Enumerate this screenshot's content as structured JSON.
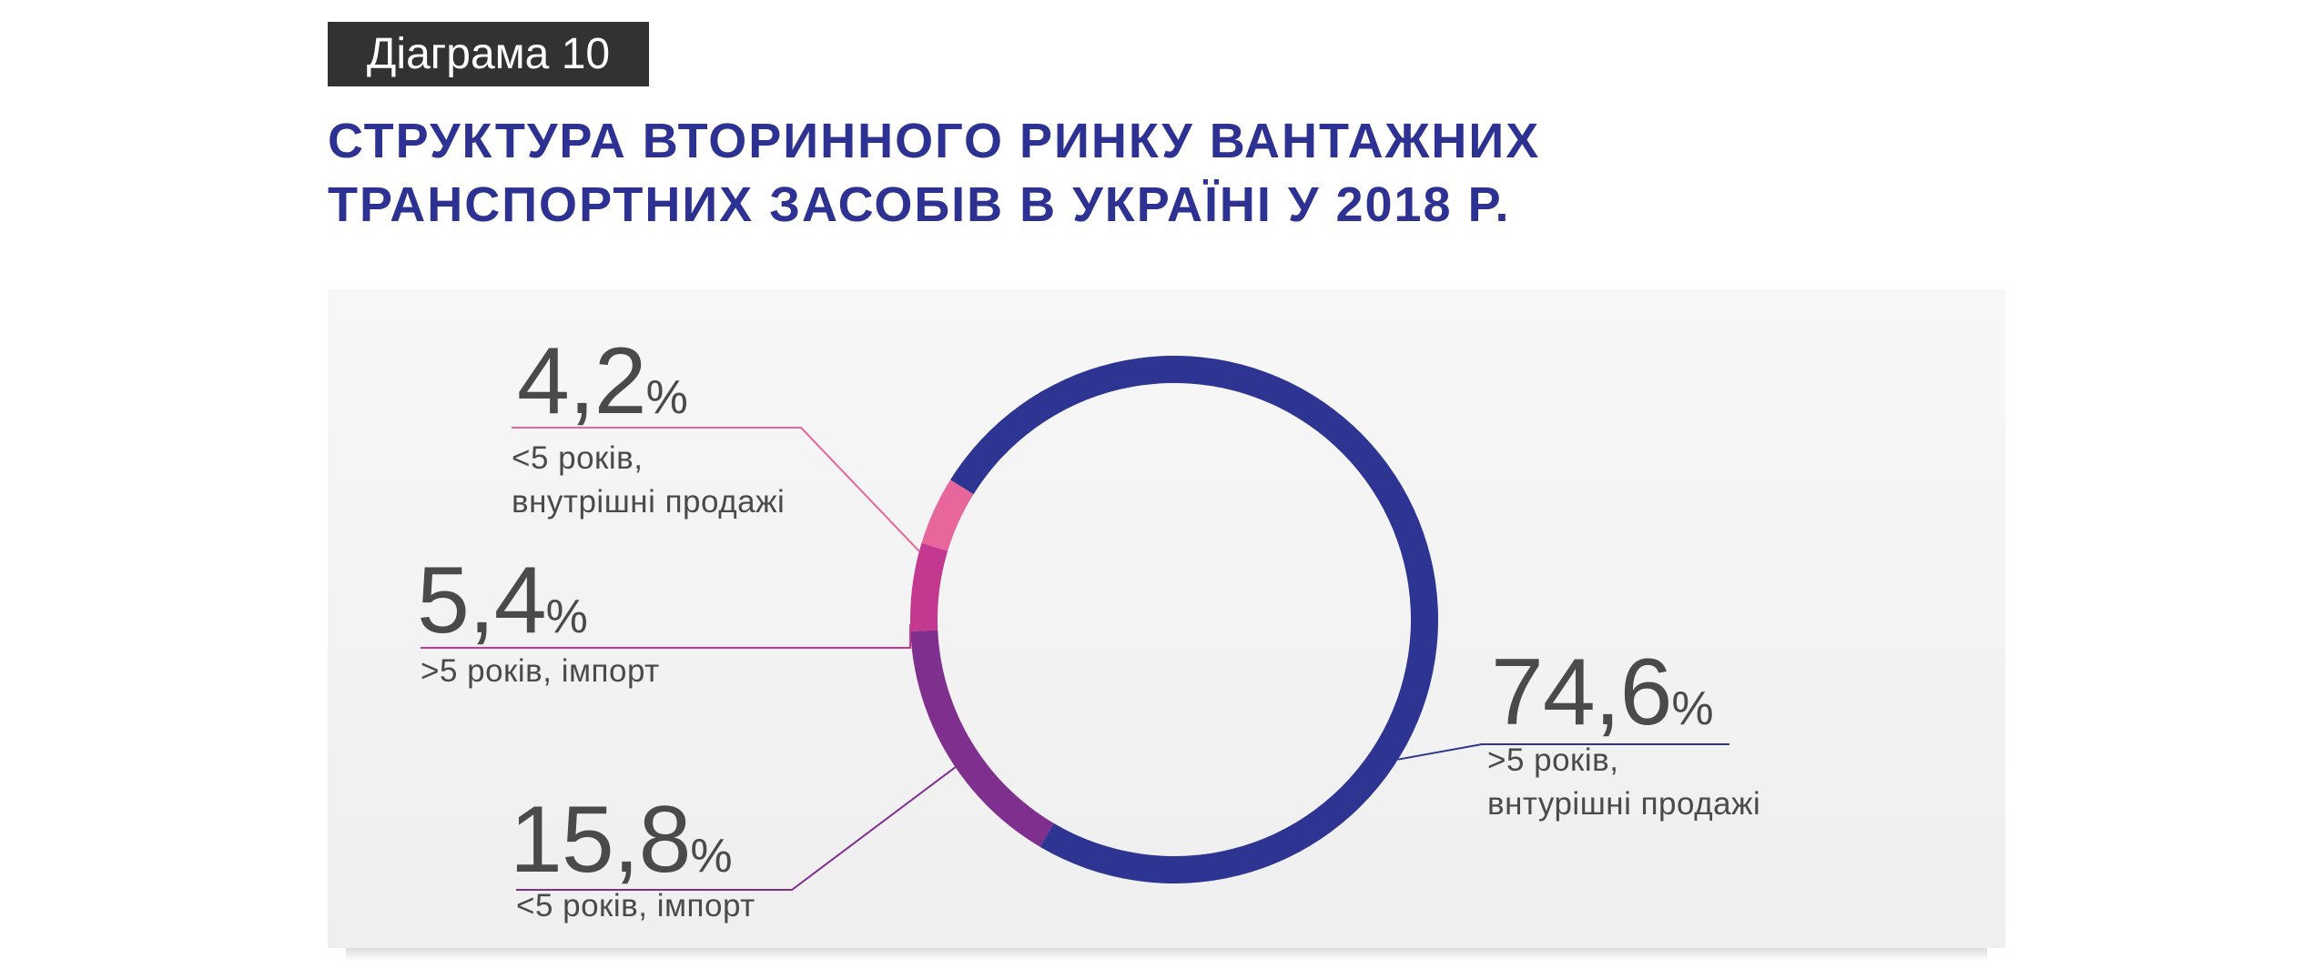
{
  "badge": "Діаграма 10",
  "title_lines": [
    "СТРУКТУРА ВТОРИННОГО РИНКУ ВАНТАЖНИХ",
    "ТРАНСПОРТНИХ ЗАСОБІВ В УКРАЇНІ У 2018 Р."
  ],
  "chart_data": {
    "type": "pie",
    "variant": "donut",
    "start_direction": "top-left",
    "segments": [
      {
        "label_line1": ">5 років,",
        "label_line2": "внтурішні продажі",
        "value": 74.6,
        "value_text": "74,6",
        "unit": "%",
        "color": "#2d3491"
      },
      {
        "label_line1": "<5 років, імпорт",
        "label_line2": "",
        "value": 15.8,
        "value_text": "15,8",
        "unit": "%",
        "color": "#7f2f8e"
      },
      {
        "label_line1": ">5 років, імпорт",
        "label_line2": "",
        "value": 5.4,
        "value_text": "5,4",
        "unit": "%",
        "color": "#c2398f"
      },
      {
        "label_line1": "<5 років,",
        "label_line2": "внутрішні продажі",
        "value": 4.2,
        "value_text": "4,2",
        "unit": "%",
        "color": "#e7669b"
      }
    ]
  }
}
